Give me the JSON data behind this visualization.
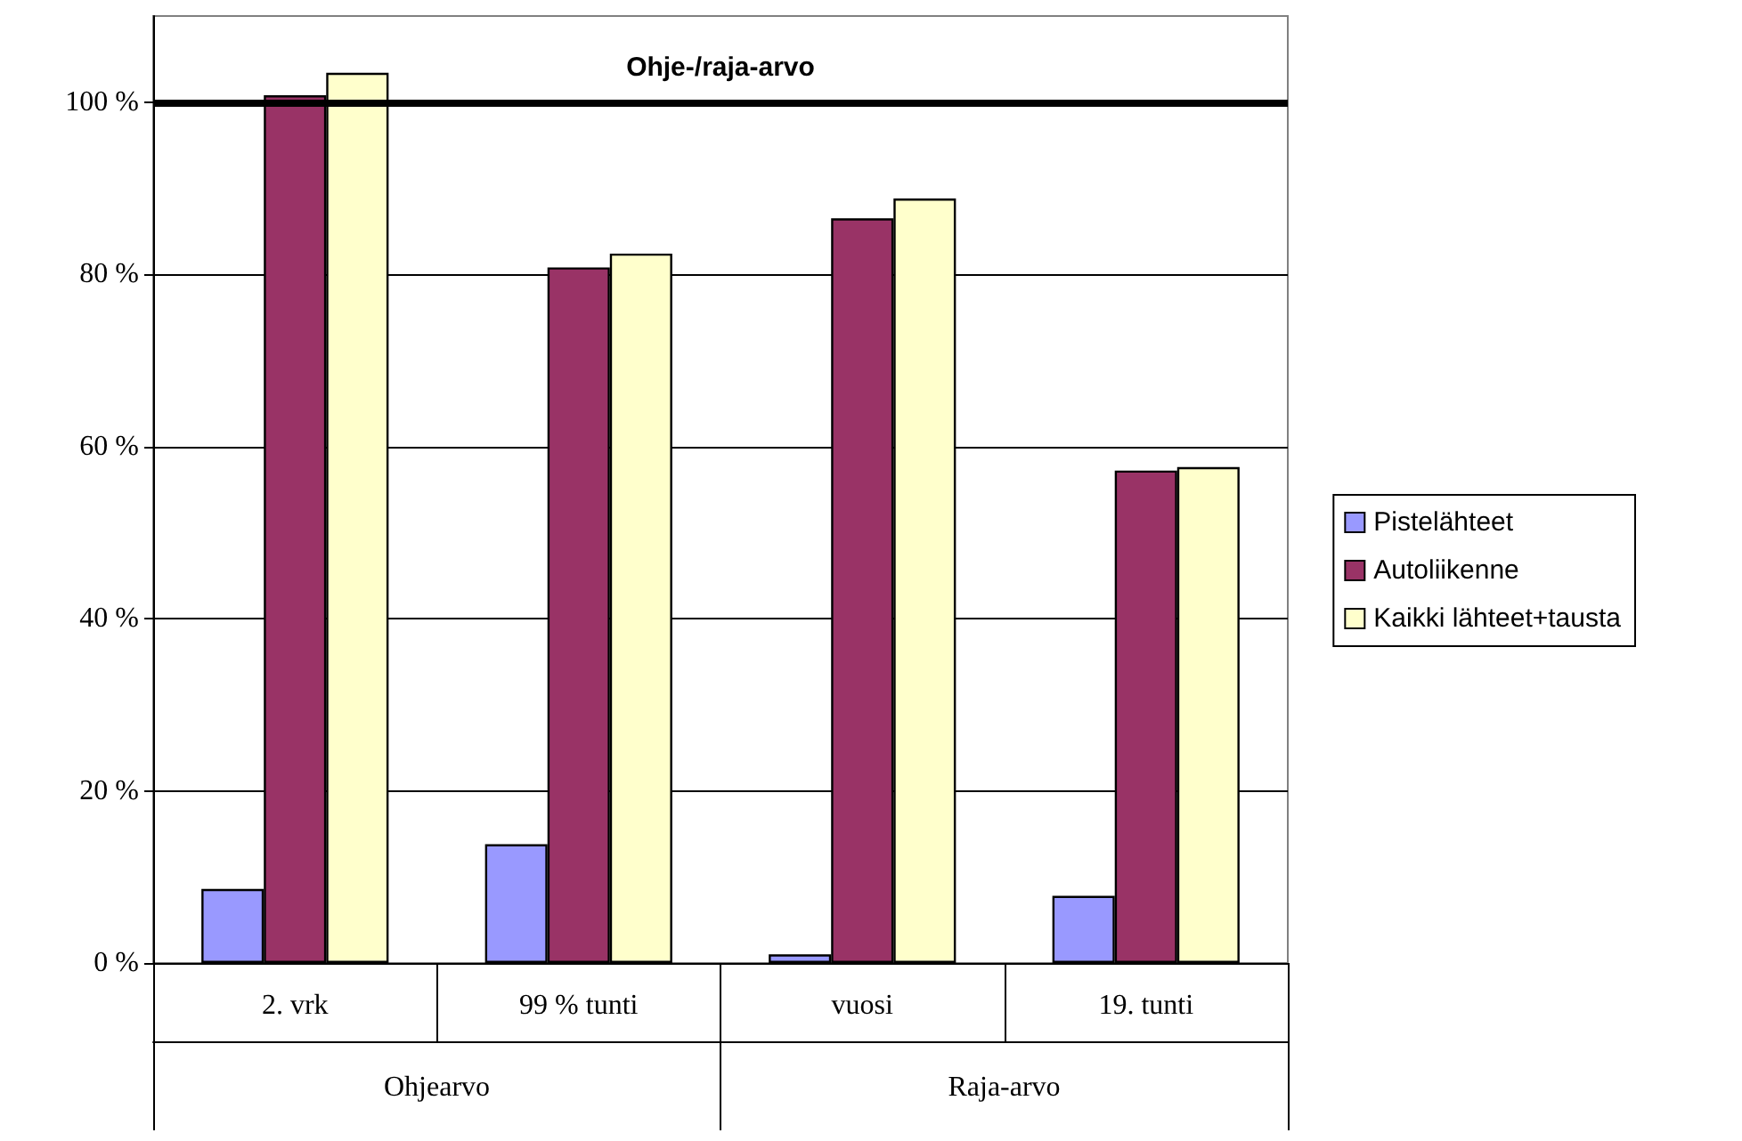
{
  "chart_data": {
    "type": "bar",
    "categories": [
      "2. vrk",
      "99 % tunti",
      "vuosi",
      "19. tunti"
    ],
    "series": [
      {
        "name": "Pistelähteet",
        "color": "#9999ff",
        "values": [
          8.6,
          13.8,
          1.0,
          7.8
        ]
      },
      {
        "name": "Autoliikenne",
        "color": "#993366",
        "values": [
          100.8,
          80.8,
          86.5,
          57.2
        ]
      },
      {
        "name": "Kaikki lähteet+tausta",
        "color": "#ffffcc",
        "values": [
          103.4,
          82.4,
          88.8,
          57.6
        ]
      }
    ],
    "annotations": [
      "Ohjearvo",
      "Raja-arvo"
    ],
    "ylim": [
      0,
      110
    ],
    "yticks": [
      {
        "value": 0,
        "label": "0 %"
      },
      {
        "value": 20,
        "label": "20 %"
      },
      {
        "value": 40,
        "label": "40 %"
      },
      {
        "value": 60,
        "label": "60 %"
      },
      {
        "value": 80,
        "label": "80 %"
      },
      {
        "value": 100,
        "label": "100 %"
      }
    ],
    "ref_lines": [
      {
        "axis": "y",
        "value": 100,
        "label": "Ohje-/raja-arvo",
        "color": "#000000"
      }
    ],
    "grid": "y",
    "legend": "right"
  }
}
